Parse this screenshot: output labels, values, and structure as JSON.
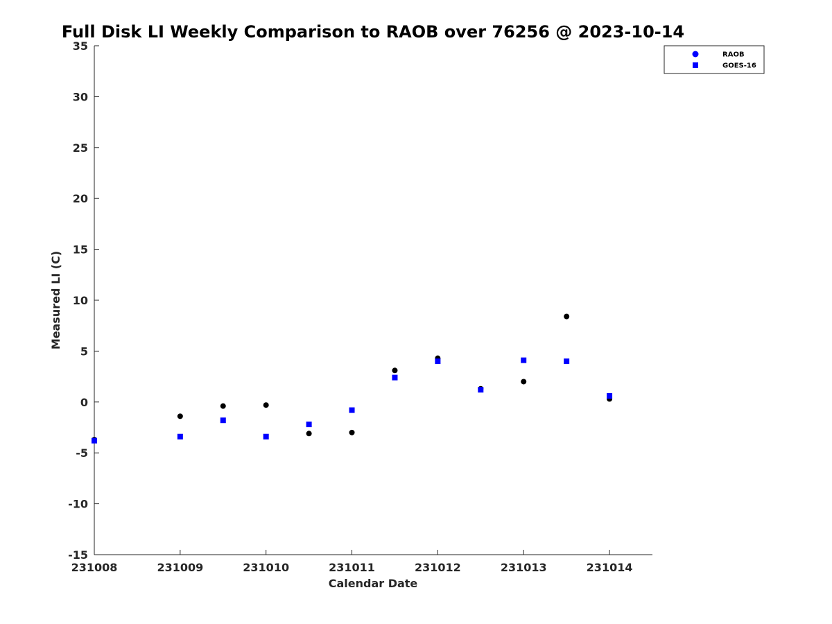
{
  "chart_data": {
    "type": "scatter",
    "title": "Full Disk LI Weekly Comparison to RAOB over 76256 @ 2023-10-14",
    "xlabel": "Calendar Date",
    "ylabel": "Measured LI (C)",
    "xlim": [
      "231008",
      "231014.5"
    ],
    "ylim": [
      -15,
      35
    ],
    "x_ticks": [
      "231008",
      "231009",
      "231010",
      "231011",
      "231012",
      "231013",
      "231014"
    ],
    "y_ticks": [
      -15,
      -10,
      -5,
      0,
      5,
      10,
      15,
      20,
      25,
      30,
      35
    ],
    "grid": false,
    "legend_position": "top-right",
    "series": [
      {
        "name": "RAOB",
        "marker": "circle",
        "color": "#000000",
        "legend_color": "#0000ff",
        "points": [
          {
            "x": "231008 00Z",
            "y": -3.7
          },
          {
            "x": "231009 00Z",
            "y": -1.4
          },
          {
            "x": "231009 12Z",
            "y": -0.4
          },
          {
            "x": "231010 00Z",
            "y": -0.3
          },
          {
            "x": "231010 12Z",
            "y": -3.1
          },
          {
            "x": "231011 00Z",
            "y": -3.0
          },
          {
            "x": "231011 12Z",
            "y": 3.1
          },
          {
            "x": "231012 00Z",
            "y": 4.3
          },
          {
            "x": "231012 12Z",
            "y": 1.3
          },
          {
            "x": "231013 00Z",
            "y": 2.0
          },
          {
            "x": "231013 12Z",
            "y": 8.4
          },
          {
            "x": "231014 00Z",
            "y": 0.3
          }
        ]
      },
      {
        "name": "GOES-16",
        "marker": "square",
        "color": "#0000ff",
        "legend_color": "#0000ff",
        "points": [
          {
            "x": "231008 00Z",
            "y": -3.8
          },
          {
            "x": "231009 00Z",
            "y": -3.4
          },
          {
            "x": "231009 12Z",
            "y": -1.8
          },
          {
            "x": "231010 00Z",
            "y": -3.4
          },
          {
            "x": "231010 12Z",
            "y": -2.2
          },
          {
            "x": "231011 00Z",
            "y": -0.8
          },
          {
            "x": "231011 12Z",
            "y": 2.4
          },
          {
            "x": "231012 00Z",
            "y": 4.0
          },
          {
            "x": "231012 12Z",
            "y": 1.2
          },
          {
            "x": "231013 00Z",
            "y": 4.1
          },
          {
            "x": "231013 12Z",
            "y": 4.0
          },
          {
            "x": "231014 00Z",
            "y": 0.6
          }
        ]
      }
    ]
  }
}
